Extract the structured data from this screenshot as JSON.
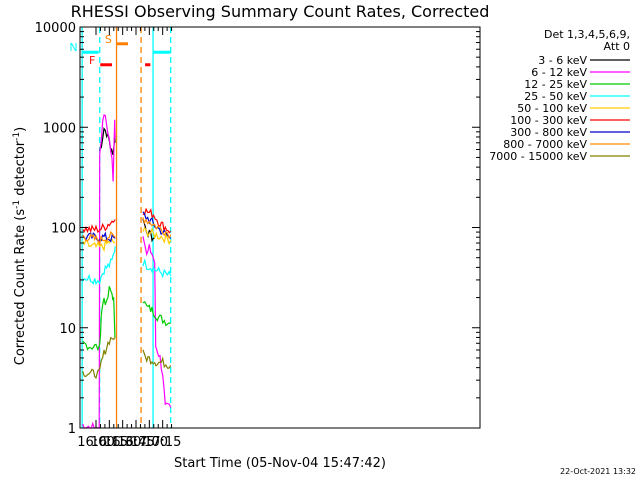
{
  "chart_data": {
    "type": "line",
    "title": "RHESSI Observing Summary Count Rates, Corrected",
    "xlabel": "Start Time (05-Nov-04 15:47:42)",
    "ylabel_main": "Corrected Count Rate (s",
    "ylabel_sup1": "-1",
    "ylabel_mid": " detector",
    "ylabel_sup2": "-1",
    "ylabel_end": ")",
    "y_scale": "log",
    "ylim": [
      1,
      10000
    ],
    "xlim_minutes": [
      15.7,
      23.2
    ],
    "xlim_comment_free": "",
    "x_ticks": [
      {
        "label": "16:00",
        "t": 16.0
      },
      {
        "label": "16:15",
        "t": 16.25
      },
      {
        "label": "16:30",
        "t": 16.5
      },
      {
        "label": "16:45",
        "t": 16.75
      },
      {
        "label": "17:00",
        "t": 17.0
      },
      {
        "label": "17:15",
        "t": 17.25
      }
    ],
    "y_ticks": [
      {
        "label": "1",
        "v": 1
      },
      {
        "label": "10",
        "v": 10
      },
      {
        "label": "100",
        "v": 100
      },
      {
        "label": "1000",
        "v": 1000
      },
      {
        "label": "10000",
        "v": 10000
      }
    ],
    "legend_header": [
      "Det 1,3,4,5,6,9,",
      "Att 0"
    ],
    "legend_placement": "right",
    "series": [
      {
        "name": "3 - 6 keV",
        "color": "#000000",
        "seg1": [
          [
            16.07,
            580
          ],
          [
            16.1,
            680
          ],
          [
            16.15,
            980
          ],
          [
            16.2,
            880
          ],
          [
            16.25,
            720
          ],
          [
            16.28,
            600
          ],
          [
            16.3,
            560
          ],
          [
            16.33,
            600
          ],
          [
            16.35,
            820
          ],
          [
            16.36,
            700
          ]
        ],
        "seg2": [
          [
            16.88,
            120
          ],
          [
            16.95,
            95
          ],
          [
            17.0,
            85
          ],
          [
            17.05,
            80
          ],
          [
            17.1,
            78
          ]
        ]
      },
      {
        "name": "6 - 12 keV",
        "color": "#ff00ff",
        "seg1": [
          [
            15.75,
            1.0
          ],
          [
            16.02,
            1.0
          ],
          [
            16.06,
            1.0
          ],
          [
            16.07,
            550
          ],
          [
            16.1,
            800
          ],
          [
            16.15,
            1400
          ],
          [
            16.2,
            1050
          ],
          [
            16.25,
            760
          ],
          [
            16.3,
            460
          ],
          [
            16.32,
            310
          ],
          [
            16.35,
            1200
          ],
          [
            16.36,
            780
          ]
        ],
        "seg2": [
          [
            16.88,
            90
          ],
          [
            16.95,
            52
          ],
          [
            17.0,
            62
          ],
          [
            17.05,
            55
          ],
          [
            17.1,
            45
          ],
          [
            17.12,
            6.5
          ],
          [
            17.15,
            6.0
          ],
          [
            17.2,
            5.0
          ],
          [
            17.25,
            3.5
          ],
          [
            17.3,
            1.6
          ],
          [
            17.4,
            1.6
          ]
        ]
      },
      {
        "name": "12 - 25 keV",
        "color": "#00cc00",
        "seg1": [
          [
            15.75,
            7.0
          ],
          [
            15.9,
            6.5
          ],
          [
            16.0,
            6.5
          ],
          [
            16.07,
            6.2
          ],
          [
            16.1,
            14
          ],
          [
            16.15,
            20
          ],
          [
            16.2,
            17
          ],
          [
            16.25,
            24
          ],
          [
            16.3,
            22
          ],
          [
            16.33,
            19
          ],
          [
            16.35,
            10
          ],
          [
            16.36,
            8
          ]
        ],
        "seg2": [
          [
            16.88,
            19
          ],
          [
            16.95,
            16
          ],
          [
            17.05,
            15
          ],
          [
            17.15,
            13
          ],
          [
            17.25,
            12
          ],
          [
            17.4,
            11
          ]
        ]
      },
      {
        "name": "25 - 50 keV",
        "color": "#00ffff",
        "seg1": [
          [
            15.75,
            32
          ],
          [
            15.9,
            31
          ],
          [
            16.0,
            30
          ],
          [
            16.07,
            30
          ],
          [
            16.15,
            38
          ],
          [
            16.25,
            42
          ],
          [
            16.3,
            46
          ],
          [
            16.35,
            60
          ],
          [
            16.36,
            65
          ]
        ],
        "seg2": [
          [
            16.88,
            45
          ],
          [
            16.95,
            42
          ],
          [
            17.05,
            40
          ],
          [
            17.15,
            37
          ],
          [
            17.25,
            35
          ],
          [
            17.4,
            33
          ]
        ]
      },
      {
        "name": "50 - 100 keV",
        "color": "#ffcc00",
        "seg1": [
          [
            15.75,
            70
          ],
          [
            15.9,
            65
          ],
          [
            16.0,
            64
          ],
          [
            16.07,
            63
          ],
          [
            16.15,
            65
          ],
          [
            16.25,
            72
          ],
          [
            16.3,
            72
          ],
          [
            16.36,
            70
          ]
        ],
        "seg2": [
          [
            16.88,
            92
          ],
          [
            17.0,
            90
          ],
          [
            17.1,
            85
          ],
          [
            17.25,
            80
          ],
          [
            17.4,
            75
          ]
        ]
      },
      {
        "name": "100 - 300 keV",
        "color": "#ff0000",
        "seg1": [
          [
            15.75,
            98
          ],
          [
            15.9,
            95
          ],
          [
            16.0,
            96
          ],
          [
            16.07,
            97
          ],
          [
            16.15,
            100
          ],
          [
            16.25,
            110
          ],
          [
            16.3,
            115
          ],
          [
            16.36,
            120
          ]
        ],
        "seg2": [
          [
            16.88,
            150
          ],
          [
            17.0,
            140
          ],
          [
            17.08,
            135
          ],
          [
            17.2,
            110
          ],
          [
            17.3,
            100
          ],
          [
            17.4,
            92
          ]
        ]
      },
      {
        "name": "300 - 800 keV",
        "color": "#0000cc",
        "seg1": [
          [
            15.75,
            80
          ],
          [
            15.9,
            80
          ],
          [
            16.0,
            80
          ],
          [
            16.07,
            80
          ],
          [
            16.15,
            80
          ],
          [
            16.25,
            78
          ],
          [
            16.36,
            78
          ]
        ],
        "seg2": [
          [
            16.88,
            135
          ],
          [
            17.0,
            120
          ],
          [
            17.1,
            105
          ],
          [
            17.25,
            90
          ],
          [
            17.4,
            78
          ]
        ]
      },
      {
        "name": "800 - 7000 keV",
        "color": "#ff8c00",
        "seg1": [
          [
            15.75,
            82
          ],
          [
            15.9,
            78
          ],
          [
            16.0,
            76
          ],
          [
            16.07,
            75
          ],
          [
            16.15,
            78
          ],
          [
            16.25,
            82
          ],
          [
            16.36,
            80
          ]
        ],
        "seg2": [
          [
            16.88,
            125
          ],
          [
            17.0,
            115
          ],
          [
            17.1,
            105
          ],
          [
            17.25,
            95
          ],
          [
            17.4,
            85
          ]
        ]
      },
      {
        "name": "7000 - 15000 keV",
        "color": "#808000",
        "seg1": [
          [
            15.75,
            3.6
          ],
          [
            15.9,
            3.5
          ],
          [
            16.0,
            3.5
          ],
          [
            16.07,
            3.5
          ],
          [
            16.1,
            4.5
          ],
          [
            16.15,
            5.5
          ],
          [
            16.2,
            6.5
          ],
          [
            16.25,
            7.5
          ],
          [
            16.3,
            8.0
          ],
          [
            16.36,
            8.0
          ]
        ],
        "seg2": [
          [
            16.88,
            5.5
          ],
          [
            16.95,
            5.0
          ],
          [
            17.05,
            4.8
          ],
          [
            17.15,
            4.5
          ],
          [
            17.25,
            4.5
          ],
          [
            17.4,
            4.2
          ]
        ]
      }
    ],
    "markers": [
      {
        "label": "F",
        "color": "#ff0000",
        "kind": "flare",
        "ranges": [
          [
            16.08,
            16.3
          ],
          [
            16.92,
            17.02
          ]
        ],
        "level": 4200
      },
      {
        "label": "N",
        "color": "#00ffff",
        "kind": "night",
        "ranges": [
          [
            15.75,
            16.05
          ],
          [
            17.08,
            17.4
          ]
        ],
        "level": 5600
      },
      {
        "label": "S",
        "color": "#ff8000",
        "kind": "saa",
        "ranges": [
          [
            16.39,
            16.6
          ]
        ],
        "level": 6800
      }
    ],
    "vlines": [
      {
        "t": 15.74,
        "color": "#00ffff",
        "dash": false
      },
      {
        "t": 16.07,
        "color": "#00ffff",
        "dash": true
      },
      {
        "t": 16.385,
        "color": "#ff8000",
        "dash": false
      },
      {
        "t": 16.845,
        "color": "#ff8000",
        "dash": true
      },
      {
        "t": 17.07,
        "color": "#00ffff",
        "dash": false
      },
      {
        "t": 17.4,
        "color": "#00ffff",
        "dash": true
      }
    ],
    "grid": false
  },
  "footer_timestamp": "22-Oct-2021 13:32"
}
